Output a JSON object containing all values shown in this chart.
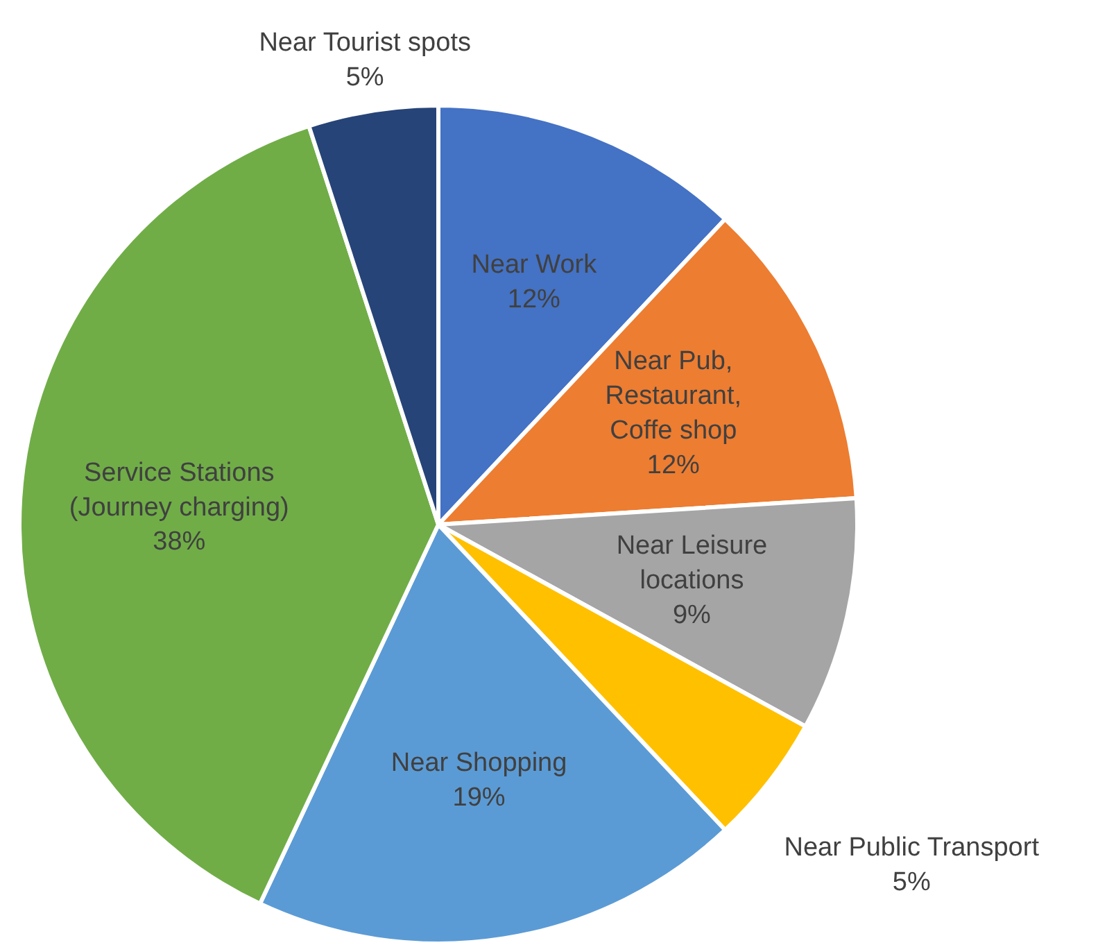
{
  "chart_data": {
    "type": "pie",
    "categories": [
      "Near Work",
      "Near Pub, Restaurant, Coffe shop",
      "Near Leisure locations",
      "Near Public Transport",
      "Near Shopping",
      "Service Stations (Journey charging)",
      "Near Tourist spots"
    ],
    "values": [
      12,
      12,
      9,
      5,
      19,
      38,
      5
    ],
    "value_labels": [
      "12%",
      "12%",
      "9%",
      "5%",
      "19%",
      "38%",
      "5%"
    ],
    "colors": [
      "#4472c4",
      "#ed7d31",
      "#a5a5a5",
      "#ffc000",
      "#5b9bd5",
      "#70ad47",
      "#264478"
    ]
  }
}
